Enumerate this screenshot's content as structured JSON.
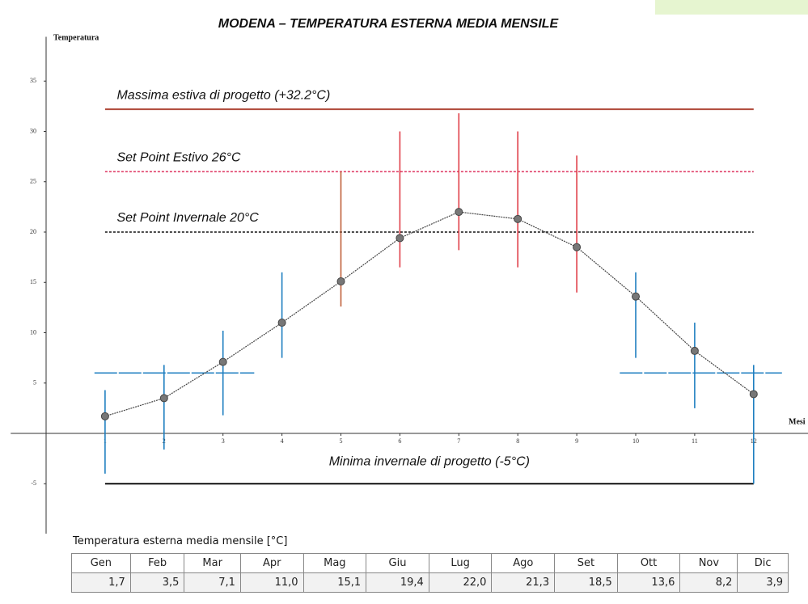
{
  "chart_data": {
    "type": "line",
    "title": "MODENA – TEMPERATURA ESTERNA MEDIA MENSILE",
    "ylabel": "Temperatura",
    "xlabel": "Mesi",
    "x": [
      1,
      2,
      3,
      4,
      5,
      6,
      7,
      8,
      9,
      10,
      11,
      12
    ],
    "xlim": [
      -0.6,
      12.9
    ],
    "xticks": [
      1,
      2,
      3,
      4,
      5,
      6,
      7,
      8,
      9,
      10,
      11,
      12
    ],
    "ylim": [
      -10,
      39.4
    ],
    "yticks": [
      -5,
      5,
      10,
      15,
      20,
      25,
      30,
      35
    ],
    "series": [
      {
        "name": "Temperatura esterna media mensile",
        "color": "#444444",
        "values": [
          1.7,
          3.5,
          7.1,
          11.0,
          15.1,
          19.4,
          22.0,
          21.3,
          18.5,
          13.6,
          8.2,
          3.9
        ]
      }
    ],
    "ranges": {
      "lows": [
        -4.0,
        -1.6,
        1.8,
        7.5,
        12.6,
        16.5,
        18.2,
        16.5,
        14.0,
        7.5,
        2.5,
        -5.0
      ],
      "highs": [
        4.3,
        6.8,
        10.2,
        16.0,
        26.0,
        30.0,
        31.8,
        30.0,
        27.6,
        16.0,
        11.0,
        6.8
      ],
      "colors": [
        "#1f7fc0",
        "#1f7fc0",
        "#1f7fc0",
        "#1f7fc0",
        "#c0603a",
        "#e0404a",
        "#e0404a",
        "#e0404a",
        "#e0404a",
        "#1f7fc0",
        "#1f7fc0",
        "#1f7fc0"
      ]
    },
    "bands": [
      {
        "y": 6.0,
        "x": [
          0.82,
          3.53
        ],
        "color": "#1f7fc0"
      },
      {
        "y": 6.0,
        "x": [
          9.73,
          12.48
        ],
        "color": "#1f7fc0"
      }
    ],
    "reference_lines": [
      {
        "label": "Massima estiva di progetto (+32.2°C)",
        "value": 32.2,
        "color": "#b04a3a",
        "style": "solid"
      },
      {
        "label": "Set Point Estivo 26°C",
        "value": 26,
        "color": "#e0406a",
        "style": "dotted"
      },
      {
        "label": "Set Point Invernale 20°C",
        "value": 20,
        "color": "#111111",
        "style": "dotted"
      },
      {
        "label": "Minima invernale di progetto (-5°C)",
        "value": -5,
        "color": "#111111",
        "style": "solid"
      }
    ]
  },
  "table": {
    "caption": "Temperatura esterna media mensile [°C]",
    "columns": [
      "Gen",
      "Feb",
      "Mar",
      "Apr",
      "Mag",
      "Giu",
      "Lug",
      "Ago",
      "Set",
      "Ott",
      "Nov",
      "Dic"
    ],
    "rows": [
      [
        "1,7",
        "3,5",
        "7,1",
        "11,0",
        "15,1",
        "19,4",
        "22,0",
        "21,3",
        "18,5",
        "13,6",
        "8,2",
        "3,9"
      ]
    ]
  }
}
